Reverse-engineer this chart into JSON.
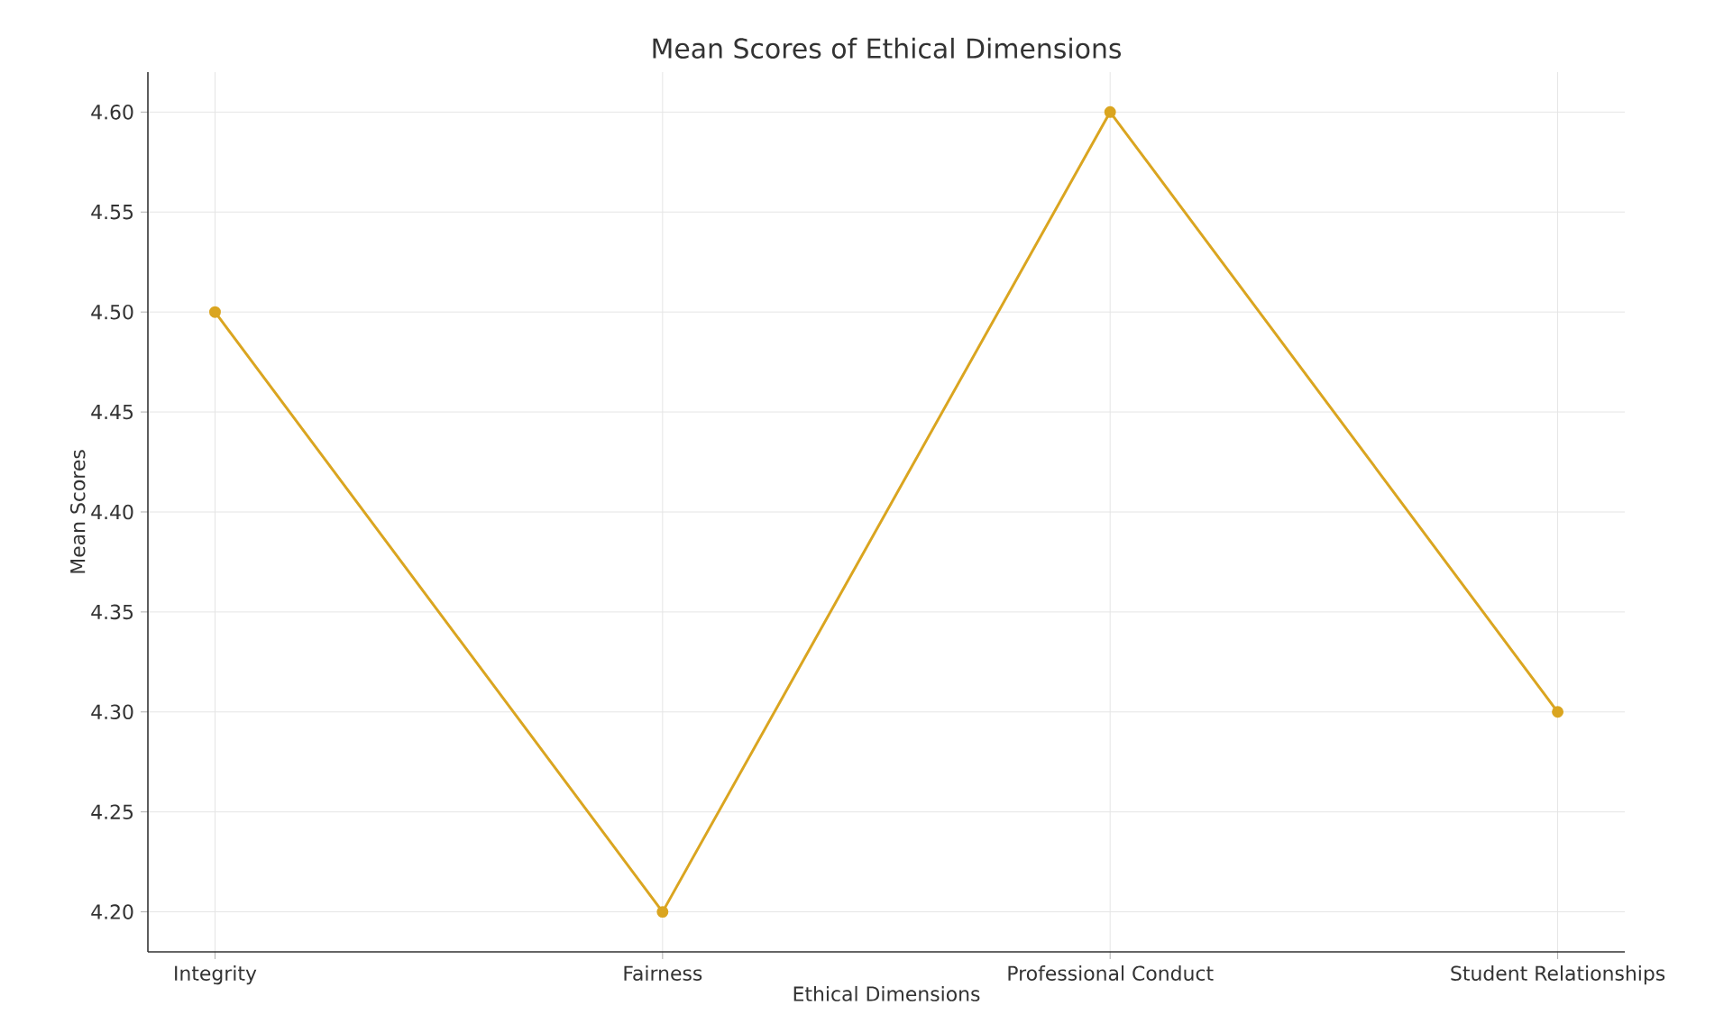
{
  "chart_data": {
    "type": "line",
    "title": "Mean Scores of Ethical Dimensions",
    "xlabel": "Ethical Dimensions",
    "ylabel": "Mean Scores",
    "categories": [
      "Integrity",
      "Fairness",
      "Professional Conduct",
      "Student Relationships"
    ],
    "series": [
      {
        "color": "#daa520",
        "values": [
          4.5,
          4.2,
          4.6,
          4.3
        ]
      }
    ],
    "ylim": [
      4.18,
      4.62
    ],
    "yticks": [
      {
        "value": 4.2,
        "label": "4.20"
      },
      {
        "value": 4.25,
        "label": "4.25"
      },
      {
        "value": 4.3,
        "label": "4.30"
      },
      {
        "value": 4.35,
        "label": "4.35"
      },
      {
        "value": 4.4,
        "label": "4.40"
      },
      {
        "value": 4.45,
        "label": "4.45"
      },
      {
        "value": 4.5,
        "label": "4.50"
      },
      {
        "value": 4.55,
        "label": "4.55"
      },
      {
        "value": 4.6,
        "label": "4.60"
      }
    ],
    "grid": true,
    "marker": "circle",
    "line_style": "solid"
  }
}
